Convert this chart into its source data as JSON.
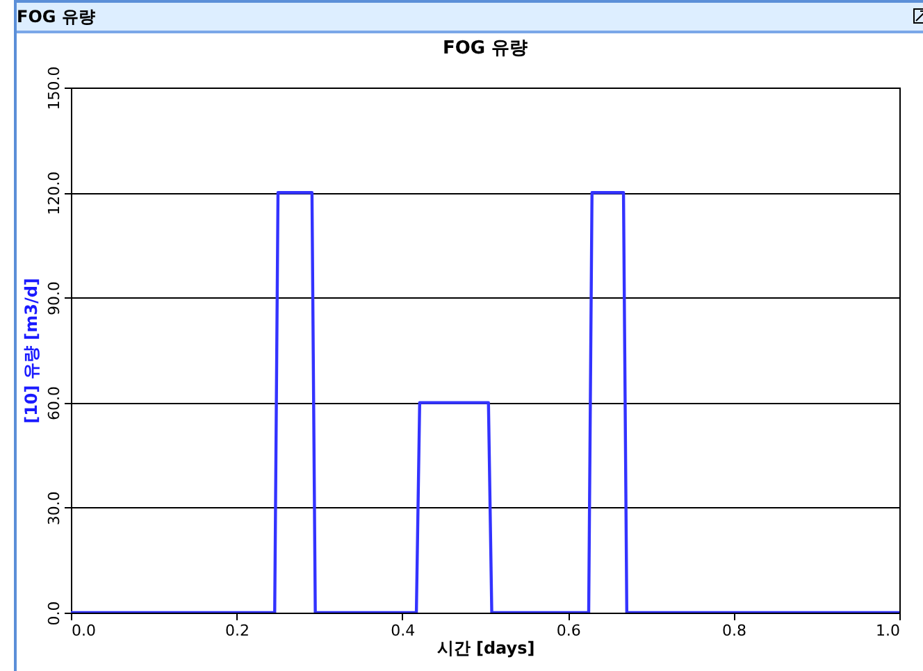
{
  "chart_data": {
    "type": "line",
    "title": "FOG 유량",
    "xlabel": "시간 [days]",
    "ylabel": "[10] 유량 [m3/d]",
    "annotations": [
      "FOG 유량"
    ],
    "series": [
      {
        "color": "#3333ff",
        "x": [
          0,
          0.246,
          0.25,
          0.291,
          0.295,
          0.417,
          0.421,
          0.504,
          0.508,
          0.625,
          0.629,
          0.667,
          0.671,
          1.0
        ],
        "values": [
          0,
          0,
          120,
          120,
          0,
          0,
          60,
          60,
          0,
          0,
          120,
          120,
          0,
          0
        ]
      }
    ],
    "xlim": [
      0,
      1
    ],
    "ylim": [
      0,
      150
    ],
    "xticks": [
      {
        "value": 0,
        "label": "0.0"
      },
      {
        "value": 0.2,
        "label": "0.2"
      },
      {
        "value": 0.4,
        "label": "0.4"
      },
      {
        "value": 0.6,
        "label": "0.6"
      },
      {
        "value": 0.8,
        "label": "0.8"
      },
      {
        "value": 1,
        "label": "1.0"
      }
    ],
    "yticks": [
      {
        "value": 0,
        "label": "0.0"
      },
      {
        "value": 30,
        "label": "30.0"
      },
      {
        "value": 60,
        "label": "60.0"
      },
      {
        "value": 90,
        "label": "90.0"
      },
      {
        "value": 120,
        "label": "120.0"
      },
      {
        "value": 150,
        "label": "150.0"
      }
    ],
    "grid": "y",
    "marker": "none",
    "line_style": "solid"
  }
}
